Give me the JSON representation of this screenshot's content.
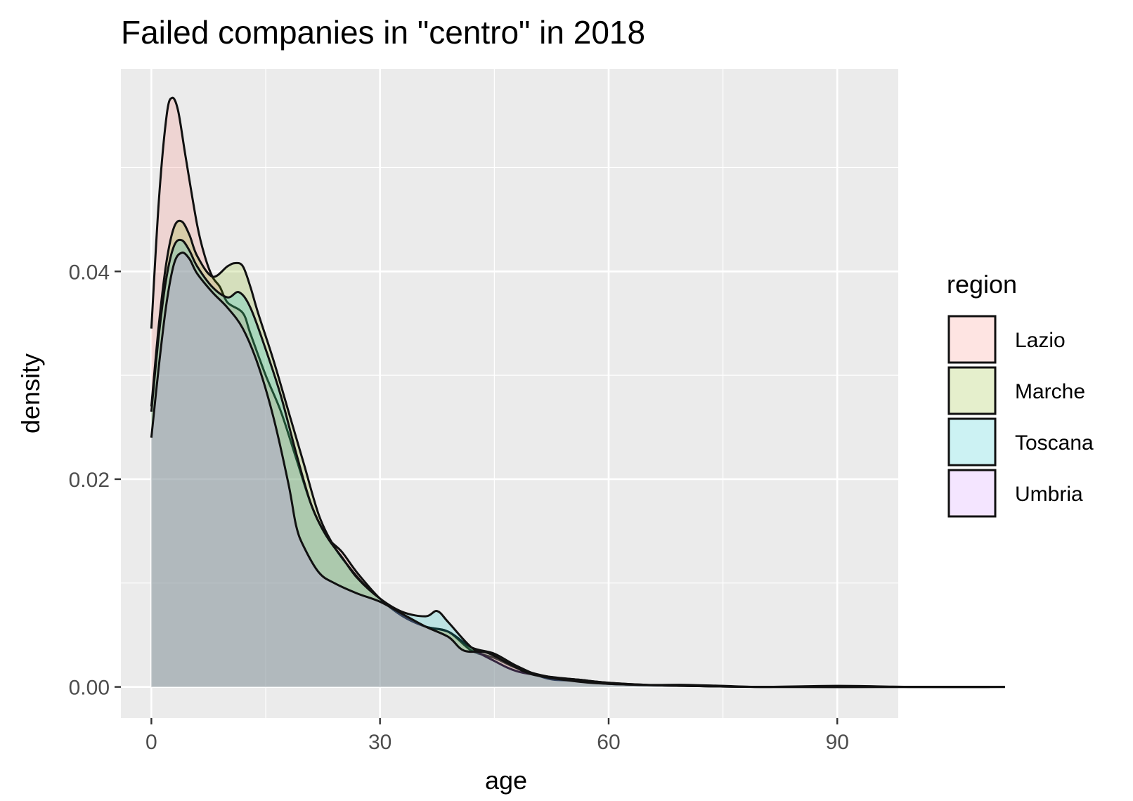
{
  "chart_data": {
    "type": "area",
    "subtype": "density",
    "title": "Failed companies in \"centro\" in 2018",
    "xlabel": "age",
    "ylabel": "density",
    "xlim": [
      -4,
      98
    ],
    "ylim": [
      -0.003,
      0.0595
    ],
    "x_ticks": [
      0,
      30,
      60,
      90
    ],
    "x_tick_labels": [
      "0",
      "30",
      "60",
      "90"
    ],
    "y_ticks": [
      0,
      0.02,
      0.04
    ],
    "y_tick_labels": [
      "0.00",
      "0.02",
      "0.04"
    ],
    "grid": true,
    "legend": {
      "title": "region",
      "position": "right"
    },
    "series": [
      {
        "name": "Lazio",
        "fill": "#F8766D",
        "points": [
          [
            0,
            0.0345
          ],
          [
            1,
            0.047
          ],
          [
            2,
            0.055
          ],
          [
            2.7,
            0.0567
          ],
          [
            3.5,
            0.0555
          ],
          [
            4.5,
            0.051
          ],
          [
            6,
            0.0445
          ],
          [
            7,
            0.0415
          ],
          [
            8,
            0.0395
          ],
          [
            9,
            0.0385
          ],
          [
            10,
            0.037
          ],
          [
            12,
            0.036
          ],
          [
            13,
            0.034
          ],
          [
            15,
            0.03
          ],
          [
            17,
            0.0265
          ],
          [
            19,
            0.022
          ],
          [
            21,
            0.0175
          ],
          [
            23,
            0.0145
          ],
          [
            25,
            0.013
          ],
          [
            27,
            0.011
          ],
          [
            30,
            0.0085
          ],
          [
            33,
            0.0068
          ],
          [
            36,
            0.0058
          ],
          [
            39,
            0.0053
          ],
          [
            42,
            0.0035
          ],
          [
            45,
            0.0028
          ],
          [
            48,
            0.0018
          ],
          [
            52,
            0.001
          ],
          [
            56,
            0.0007
          ],
          [
            60,
            0.0004
          ],
          [
            65,
            0.0002
          ],
          [
            70,
            0.0002
          ],
          [
            75,
            0.0001
          ],
          [
            80,
            0
          ],
          [
            90,
            0.0001
          ],
          [
            100,
            0
          ],
          [
            112,
            0
          ]
        ]
      },
      {
        "name": "Marche",
        "fill": "#7CAE00",
        "points": [
          [
            0,
            0.027
          ],
          [
            1,
            0.035
          ],
          [
            2,
            0.041
          ],
          [
            3,
            0.0443
          ],
          [
            4,
            0.0448
          ],
          [
            5,
            0.0435
          ],
          [
            6,
            0.0415
          ],
          [
            8,
            0.0395
          ],
          [
            10,
            0.0405
          ],
          [
            11,
            0.0408
          ],
          [
            12,
            0.0405
          ],
          [
            13,
            0.0385
          ],
          [
            14,
            0.036
          ],
          [
            16,
            0.0315
          ],
          [
            18,
            0.0265
          ],
          [
            20,
            0.0215
          ],
          [
            22,
            0.0165
          ],
          [
            24,
            0.0135
          ],
          [
            26,
            0.0115
          ],
          [
            28,
            0.0098
          ],
          [
            30,
            0.0085
          ],
          [
            33,
            0.0068
          ],
          [
            36,
            0.0058
          ],
          [
            39,
            0.0053
          ],
          [
            42,
            0.0038
          ],
          [
            45,
            0.0032
          ],
          [
            48,
            0.002
          ],
          [
            52,
            0.0008
          ],
          [
            56,
            0.0006
          ],
          [
            60,
            0.0003
          ],
          [
            70,
            0.0001
          ],
          [
            80,
            0
          ],
          [
            95,
            0
          ],
          [
            110,
            0
          ]
        ]
      },
      {
        "name": "Toscana",
        "fill": "#00BFC4",
        "points": [
          [
            0,
            0.0265
          ],
          [
            1,
            0.034
          ],
          [
            2,
            0.0395
          ],
          [
            3,
            0.0425
          ],
          [
            4,
            0.043
          ],
          [
            5,
            0.042
          ],
          [
            6,
            0.0405
          ],
          [
            8,
            0.0385
          ],
          [
            10,
            0.0375
          ],
          [
            11.5,
            0.038
          ],
          [
            13,
            0.0365
          ],
          [
            15,
            0.0325
          ],
          [
            17,
            0.028
          ],
          [
            19,
            0.0225
          ],
          [
            21,
            0.0175
          ],
          [
            23,
            0.0145
          ],
          [
            25,
            0.0125
          ],
          [
            27,
            0.0105
          ],
          [
            30,
            0.0085
          ],
          [
            33,
            0.0072
          ],
          [
            36,
            0.0068
          ],
          [
            37.5,
            0.0073
          ],
          [
            39,
            0.0062
          ],
          [
            42,
            0.0038
          ],
          [
            45,
            0.0025
          ],
          [
            48,
            0.0015
          ],
          [
            52,
            0.001
          ],
          [
            56,
            0.0007
          ],
          [
            60,
            0.0004
          ],
          [
            65,
            0.0002
          ],
          [
            70,
            0.0001
          ],
          [
            80,
            0
          ],
          [
            95,
            0
          ],
          [
            112,
            0
          ]
        ]
      },
      {
        "name": "Umbria",
        "fill": "#C77CFF",
        "points": [
          [
            0,
            0.024
          ],
          [
            1,
            0.031
          ],
          [
            2,
            0.037
          ],
          [
            3,
            0.0408
          ],
          [
            4,
            0.0418
          ],
          [
            5,
            0.0412
          ],
          [
            6,
            0.0398
          ],
          [
            8,
            0.038
          ],
          [
            10,
            0.0365
          ],
          [
            12,
            0.0345
          ],
          [
            14,
            0.031
          ],
          [
            16,
            0.026
          ],
          [
            18,
            0.0195
          ],
          [
            19,
            0.0155
          ],
          [
            20,
            0.0135
          ],
          [
            22,
            0.011
          ],
          [
            24,
            0.01
          ],
          [
            27,
            0.009
          ],
          [
            30,
            0.0082
          ],
          [
            33,
            0.007
          ],
          [
            36,
            0.0058
          ],
          [
            39,
            0.0048
          ],
          [
            41,
            0.0035
          ],
          [
            44,
            0.0033
          ],
          [
            47,
            0.0022
          ],
          [
            50,
            0.0012
          ],
          [
            55,
            0.0006
          ],
          [
            60,
            0.0003
          ],
          [
            70,
            0.0001
          ],
          [
            80,
            0
          ],
          [
            95,
            0
          ],
          [
            110,
            0
          ]
        ]
      }
    ]
  }
}
